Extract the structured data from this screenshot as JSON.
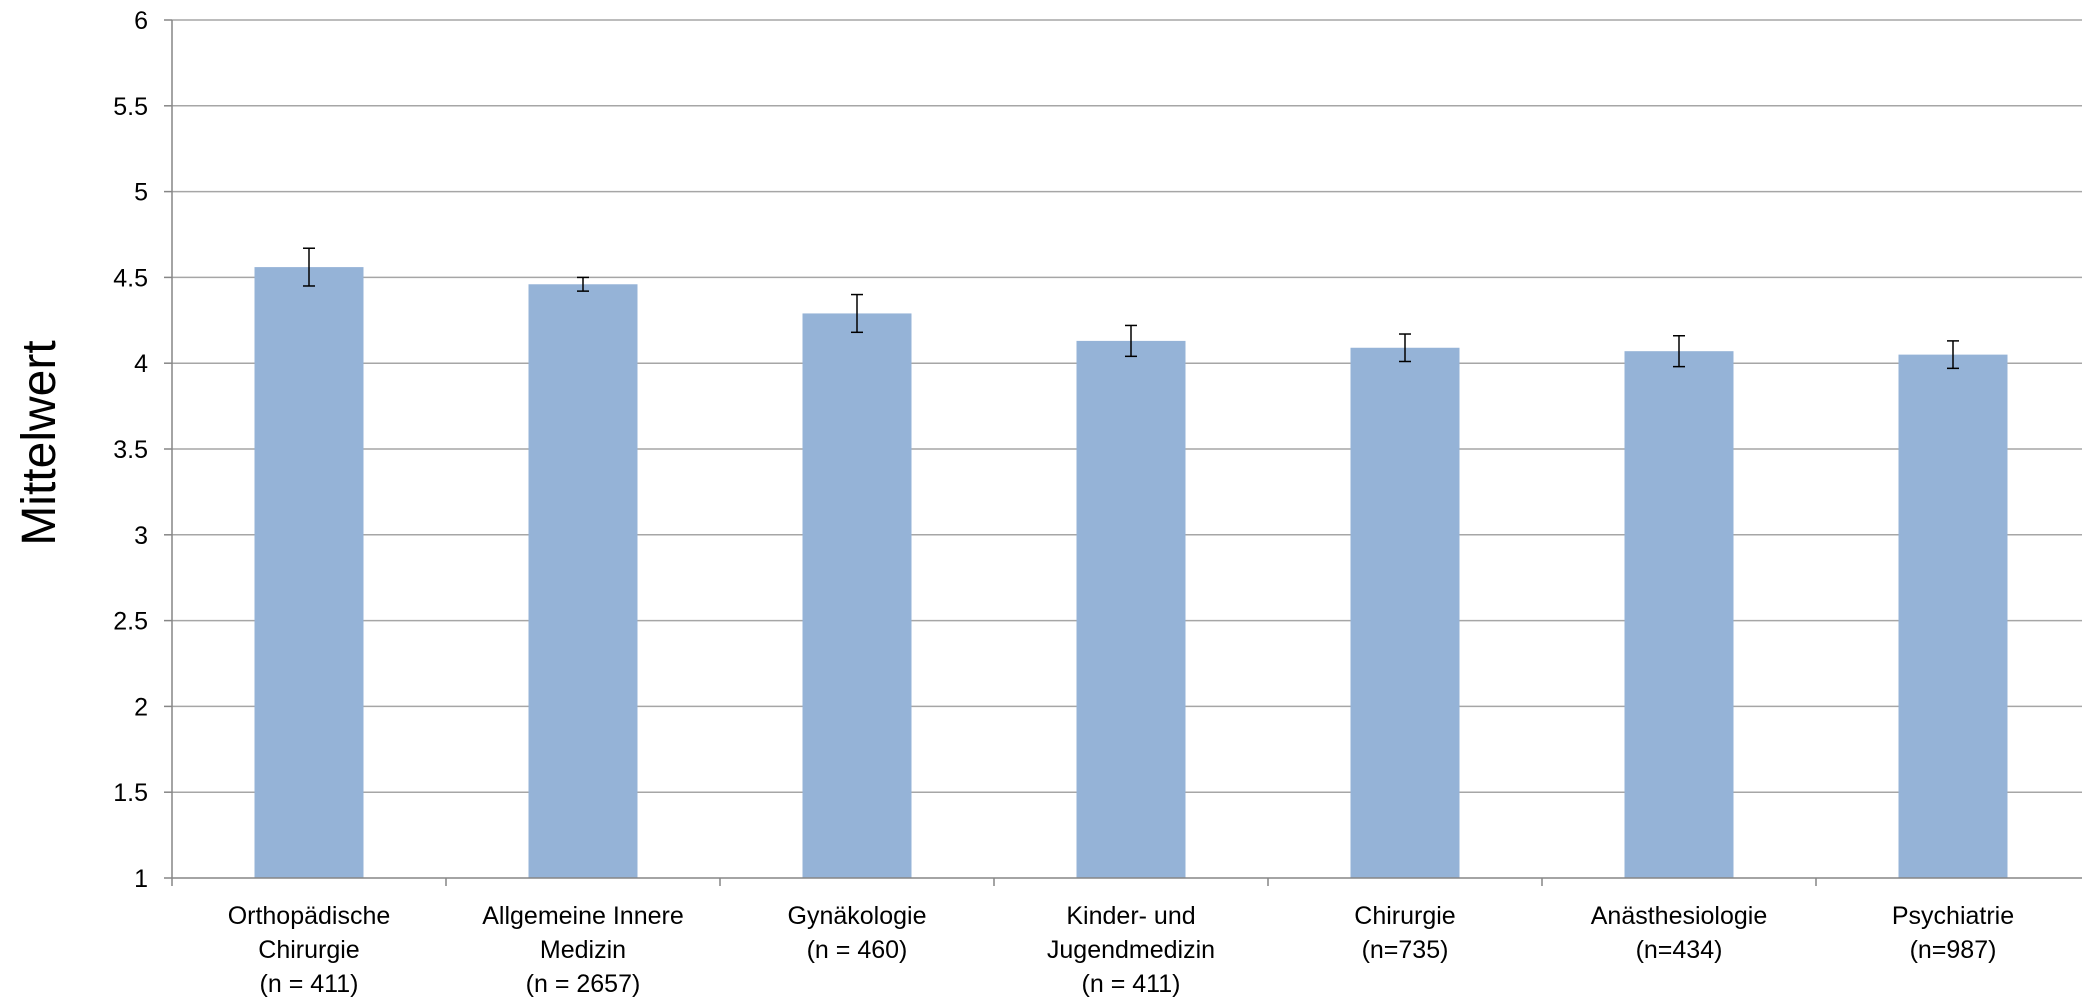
{
  "chart_data": {
    "type": "bar",
    "title": "",
    "xlabel": "",
    "ylabel": "Mittelwert",
    "ylim": [
      1,
      6
    ],
    "yticks": [
      "1",
      "1.5",
      "2",
      "2.5",
      "3",
      "3.5",
      "4",
      "4.5",
      "5",
      "5.5",
      "6"
    ],
    "grid": true,
    "bar_color": "#95B3D7",
    "categories": [
      [
        "Orthopädische",
        "Chirurgie",
        "(n = 411)"
      ],
      [
        "Allgemeine Innere",
        "Medizin",
        "(n = 2657)"
      ],
      [
        "Gynäkologie",
        "(n = 460)"
      ],
      [
        "Kinder- und",
        "Jugendmedizin",
        "(n = 411)"
      ],
      [
        "Chirurgie",
        "(n=735)"
      ],
      [
        "Anästhesiologie",
        "(n=434)"
      ],
      [
        "Psychiatrie",
        "(n=987)"
      ]
    ],
    "values": [
      4.56,
      4.46,
      4.29,
      4.13,
      4.09,
      4.07,
      4.05
    ],
    "error": [
      0.11,
      0.04,
      0.11,
      0.09,
      0.08,
      0.09,
      0.08
    ]
  }
}
